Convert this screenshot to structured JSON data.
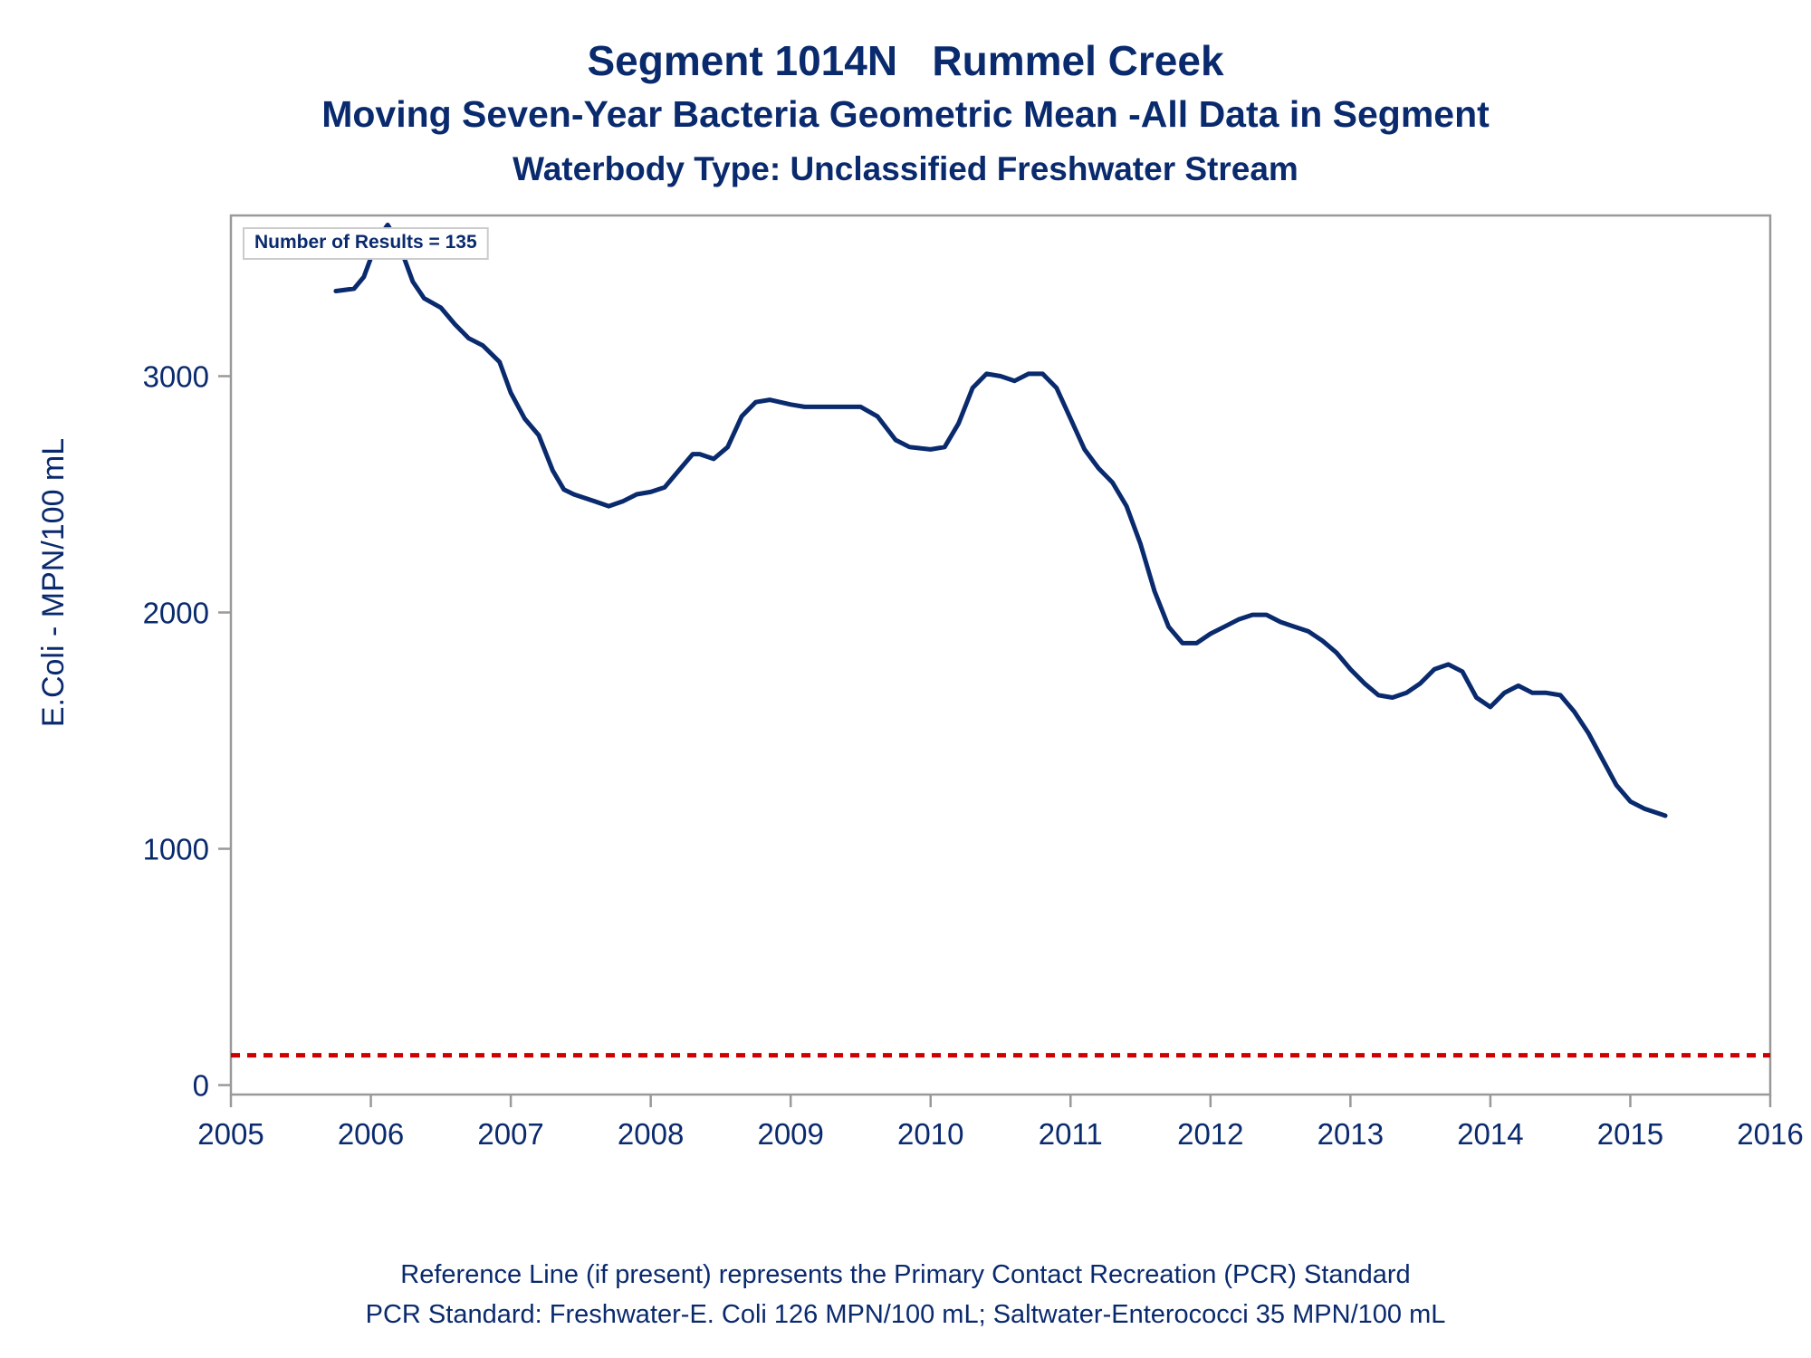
{
  "title": "Segment 1014N   Rummel Creek",
  "subtitle": "Moving Seven-Year Bacteria Geometric Mean -All Data in Segment",
  "subtitle2": "Waterbody Type: Unclassified Freshwater Stream",
  "count_label": "Number of Results = 135",
  "footnote1": "Reference Line (if present) represents the Primary Contact Recreation (PCR) Standard",
  "footnote2": "PCR Standard: Freshwater-E. Coli 126 MPN/100 mL; Saltwater-Enterococci 35 MPN/100 mL",
  "colors": {
    "text": "#0a2a6e",
    "line": "#0a2a6e",
    "reference": "#cc0000",
    "frame": "#999999"
  },
  "chart_data": {
    "type": "line",
    "xlabel": "",
    "ylabel": "E.Coli - MPN/100 mL",
    "xlim": [
      2005,
      2016
    ],
    "ylim": [
      -40,
      3680
    ],
    "xticks": [
      2005,
      2006,
      2007,
      2008,
      2009,
      2010,
      2011,
      2012,
      2013,
      2014,
      2015,
      2016
    ],
    "yticks": [
      0,
      1000,
      2000,
      3000
    ],
    "reference_line": {
      "y": 126,
      "style": "dashed"
    },
    "grid": false,
    "series": [
      {
        "x": [
          2005.75,
          2005.88,
          2005.95,
          2006.05,
          2006.12,
          2006.2,
          2006.3,
          2006.38,
          2006.5,
          2006.6,
          2006.7,
          2006.8,
          2006.92,
          2007.0,
          2007.1,
          2007.2,
          2007.3,
          2007.38,
          2007.45,
          2007.6,
          2007.7,
          2007.8,
          2007.9,
          2008.0,
          2008.1,
          2008.2,
          2008.3,
          2008.35,
          2008.45,
          2008.55,
          2008.65,
          2008.75,
          2008.85,
          2009.0,
          2009.1,
          2009.2,
          2009.35,
          2009.5,
          2009.62,
          2009.75,
          2009.85,
          2010.0,
          2010.1,
          2010.2,
          2010.3,
          2010.4,
          2010.5,
          2010.6,
          2010.7,
          2010.8,
          2010.9,
          2011.0,
          2011.1,
          2011.2,
          2011.3,
          2011.4,
          2011.5,
          2011.6,
          2011.7,
          2011.8,
          2011.9,
          2012.0,
          2012.1,
          2012.2,
          2012.3,
          2012.4,
          2012.5,
          2012.6,
          2012.7,
          2012.8,
          2012.9,
          2013.0,
          2013.1,
          2013.2,
          2013.3,
          2013.4,
          2013.5,
          2013.6,
          2013.7,
          2013.8,
          2013.9,
          2014.0,
          2014.1,
          2014.2,
          2014.3,
          2014.4,
          2014.5,
          2014.6,
          2014.7,
          2014.8,
          2014.9,
          2015.0,
          2015.1,
          2015.2,
          2015.25
        ],
        "y": [
          3360,
          3370,
          3420,
          3580,
          3640,
          3560,
          3400,
          3330,
          3290,
          3220,
          3160,
          3130,
          3060,
          2930,
          2820,
          2750,
          2600,
          2520,
          2500,
          2470,
          2450,
          2470,
          2500,
          2510,
          2530,
          2600,
          2670,
          2670,
          2650,
          2700,
          2830,
          2890,
          2900,
          2880,
          2870,
          2870,
          2870,
          2870,
          2830,
          2730,
          2700,
          2690,
          2700,
          2800,
          2950,
          3010,
          3000,
          2980,
          3010,
          3010,
          2950,
          2820,
          2690,
          2610,
          2550,
          2450,
          2290,
          2090,
          1940,
          1870,
          1870,
          1910,
          1940,
          1970,
          1990,
          1990,
          1960,
          1940,
          1920,
          1880,
          1830,
          1760,
          1700,
          1650,
          1640,
          1660,
          1700,
          1760,
          1780,
          1750,
          1640,
          1600,
          1660,
          1690,
          1660,
          1660,
          1650,
          1580,
          1490,
          1380,
          1270,
          1200,
          1170,
          1150,
          1140
        ]
      }
    ]
  }
}
